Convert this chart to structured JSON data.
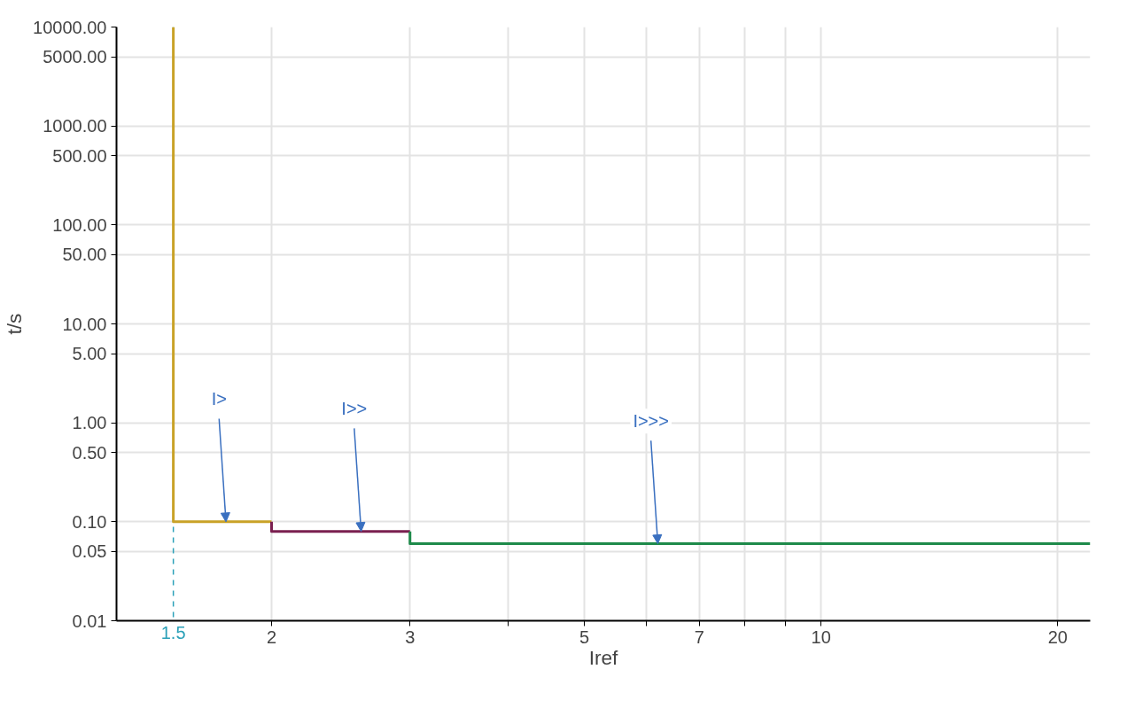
{
  "chart_data": {
    "type": "line",
    "xlabel": "Iref",
    "ylabel": "t/s",
    "log": "xy",
    "grid": true,
    "marker": "none",
    "line_style": "solid",
    "xlim": [
      1.27,
      22
    ],
    "ylim": [
      0.01,
      10000
    ],
    "xticks": [
      2,
      3,
      {
        "value": 4,
        "label": null
      },
      5,
      {
        "value": 6,
        "label": null
      },
      7,
      {
        "value": 8,
        "label": null
      },
      {
        "value": 9,
        "label": null
      },
      10,
      20
    ],
    "yticks": [
      {
        "value": 0.01,
        "label": "0.01"
      },
      {
        "value": 0.05,
        "label": "0.05"
      },
      {
        "value": 0.1,
        "label": "0.10"
      },
      {
        "value": 0.5,
        "label": "0.50"
      },
      {
        "value": 1,
        "label": "1.00"
      },
      {
        "value": 5,
        "label": "5.00"
      },
      {
        "value": 10,
        "label": "10.00"
      },
      {
        "value": 50,
        "label": "50.00"
      },
      {
        "value": 100,
        "label": "100.00"
      },
      {
        "value": 500,
        "label": "500.00"
      },
      {
        "value": 1000,
        "label": "1000.00"
      },
      {
        "value": 5000,
        "label": "5000.00"
      },
      {
        "value": 10000,
        "label": "10000.00"
      }
    ],
    "series": [
      {
        "color": "#c9a227",
        "x": [
          1.5,
          1.5,
          2
        ],
        "values": [
          10000,
          0.1,
          0.1
        ]
      },
      {
        "color": "#7a1f4f",
        "x": [
          2,
          2,
          3
        ],
        "values": [
          0.1,
          0.08,
          0.08
        ]
      },
      {
        "color": "#1e8a4a",
        "x": [
          3,
          3,
          22
        ],
        "values": [
          0.08,
          0.06,
          0.06
        ]
      }
    ],
    "ref_lines": [
      {
        "axis": "x",
        "value": 1.5,
        "label": "1.5",
        "color": "#2aa0b8",
        "line_style": "dashed"
      }
    ],
    "annotations": [
      {
        "text": "I>",
        "x": 1.75,
        "y": 0.1
      },
      {
        "text": "I>>",
        "x": 2.6,
        "y": 0.08
      },
      {
        "text": "I>>>",
        "x": 6.2,
        "y": 0.06
      }
    ]
  }
}
